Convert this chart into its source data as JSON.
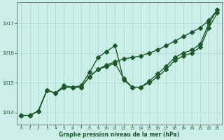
{
  "bg_color": "#cceee8",
  "line_color": "#1a5c28",
  "grid_color": "#a8d8cc",
  "spine_color": "#555555",
  "xlabel": "Graphe pression niveau de la mer (hPa)",
  "ylim": [
    1013.6,
    1017.7
  ],
  "xlim": [
    -0.5,
    23.5
  ],
  "yticks": [
    1014,
    1015,
    1016,
    1017
  ],
  "xticks": [
    0,
    1,
    2,
    3,
    4,
    5,
    6,
    7,
    8,
    9,
    10,
    11,
    12,
    13,
    14,
    15,
    16,
    17,
    18,
    19,
    20,
    21,
    22,
    23
  ],
  "hours": [
    0,
    1,
    2,
    3,
    4,
    5,
    6,
    7,
    8,
    9,
    10,
    11,
    12,
    13,
    14,
    15,
    16,
    17,
    18,
    19,
    20,
    21,
    22,
    23
  ],
  "line_jagged": [
    1013.9,
    1013.9,
    1014.05,
    1014.75,
    1014.65,
    1014.9,
    1014.85,
    1014.9,
    1015.35,
    1015.85,
    1016.05,
    1016.25,
    1015.1,
    1014.85,
    1014.85,
    1015.05,
    1015.3,
    1015.55,
    1015.85,
    1016.0,
    1016.1,
    1016.3,
    1017.0,
    1017.45
  ],
  "line_smooth": [
    1013.9,
    1013.9,
    1014.05,
    1014.75,
    1014.65,
    1014.85,
    1014.85,
    1014.85,
    1015.2,
    1015.45,
    1015.6,
    1015.7,
    1015.8,
    1015.85,
    1015.9,
    1016.0,
    1016.1,
    1016.25,
    1016.4,
    1016.55,
    1016.7,
    1016.85,
    1017.1,
    1017.45
  ],
  "line_middle": [
    1013.9,
    1013.9,
    1014.05,
    1014.75,
    1014.65,
    1014.85,
    1014.85,
    1014.85,
    1015.2,
    1015.45,
    1015.55,
    1015.65,
    1015.15,
    1014.85,
    1014.85,
    1015.0,
    1015.2,
    1015.45,
    1015.75,
    1015.9,
    1016.0,
    1016.2,
    1016.85,
    1017.35
  ]
}
